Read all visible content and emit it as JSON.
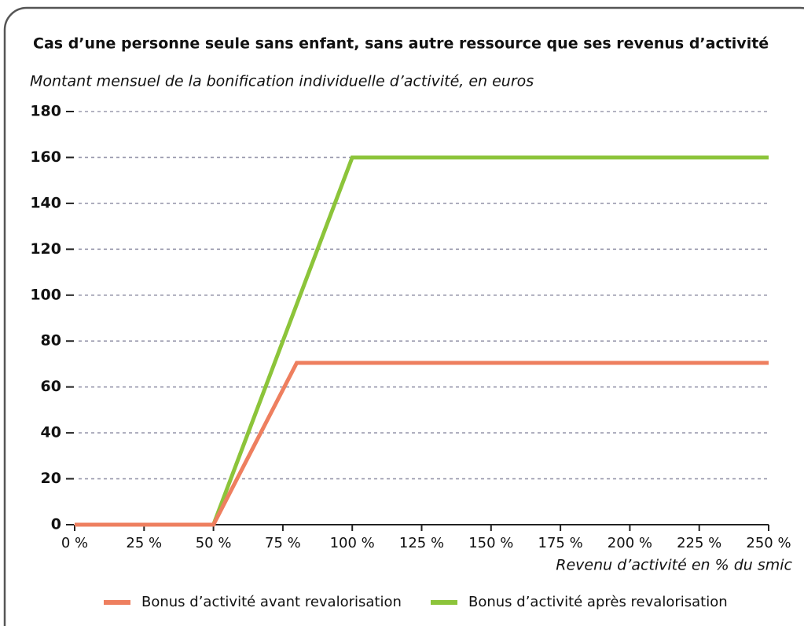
{
  "chart_data": {
    "type": "line",
    "title": "Cas d’une personne seule sans enfant, sans autre ressource que ses revenus d’activité",
    "subtitle": "Montant mensuel de la bonification individuelle d’activité, en euros",
    "x_label": "Revenu d’activité en % du smic",
    "series": [
      {
        "name": "Bonus d’activité avant revalorisation",
        "color": "#ee7f5f",
        "x": [
          0,
          50,
          80,
          250
        ],
        "values": [
          0,
          0,
          70.5,
          70.5
        ]
      },
      {
        "name": "Bonus d’activité après revalorisation",
        "color": "#8cc43a",
        "x": [
          50,
          100,
          250
        ],
        "values": [
          0,
          160,
          160
        ]
      }
    ],
    "xlim": [
      0,
      250
    ],
    "xticks": [
      {
        "value": 0,
        "label": "0 %"
      },
      {
        "value": 25,
        "label": "25 %"
      },
      {
        "value": 50,
        "label": "50 %"
      },
      {
        "value": 75,
        "label": "75 %"
      },
      {
        "value": 100,
        "label": "100 %"
      },
      {
        "value": 125,
        "label": "125 %"
      },
      {
        "value": 150,
        "label": "150 %"
      },
      {
        "value": 175,
        "label": "175 %"
      },
      {
        "value": 200,
        "label": "200 %"
      },
      {
        "value": 225,
        "label": "225 %"
      },
      {
        "value": 250,
        "label": "250 %"
      }
    ],
    "ylim": [
      0,
      180
    ],
    "yticks": [
      0,
      20,
      40,
      60,
      80,
      100,
      120,
      140,
      160,
      180
    ],
    "grid": true,
    "legend": "bottom"
  }
}
